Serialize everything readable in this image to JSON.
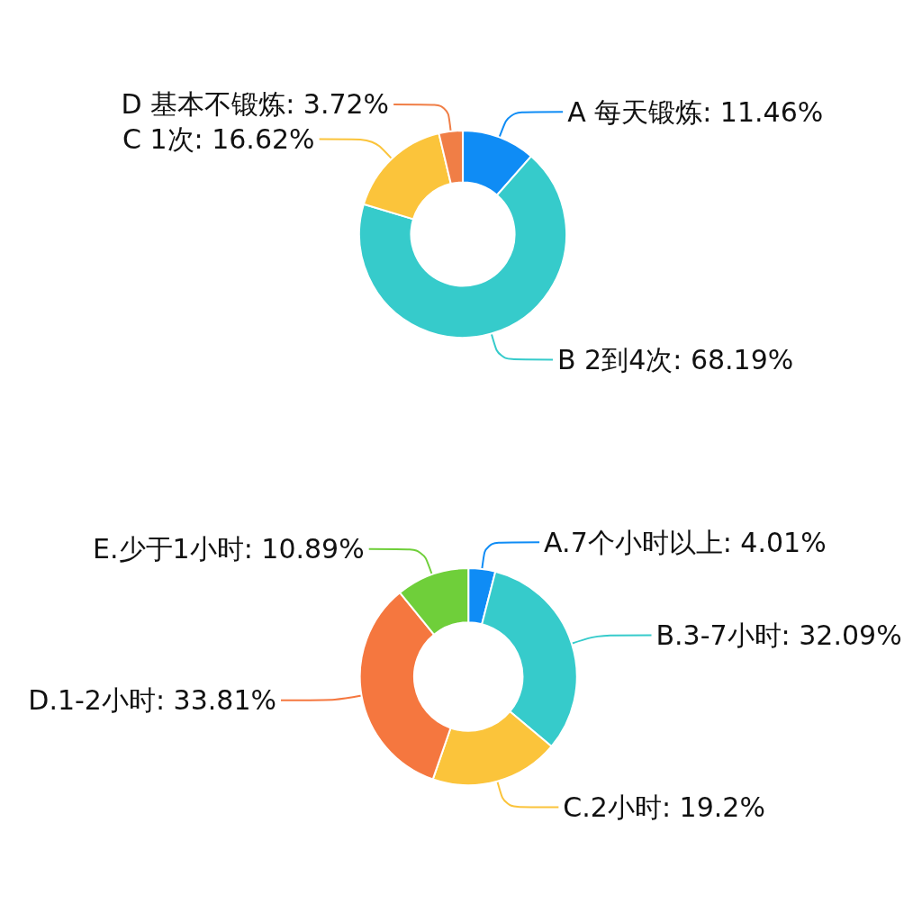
{
  "chart_data": [
    {
      "type": "donut",
      "categories": [
        "A 每天锻炼",
        "B 2到4次",
        "C 1次",
        "D 基本不锻炼"
      ],
      "values": [
        11.46,
        68.19,
        16.62,
        3.72
      ],
      "colors": [
        "#0f8cf5",
        "#36cbcb",
        "#fbc43b",
        "#f07e46"
      ],
      "value_labels": [
        "11.46%",
        "68.19%",
        "16.62%",
        "3.72%"
      ]
    },
    {
      "type": "donut",
      "categories": [
        "A.7个小时以上",
        "B.3-7小时",
        "C.2小时",
        "D.1-2小时",
        "E.少于1小时"
      ],
      "values": [
        4.01,
        32.09,
        19.2,
        33.81,
        10.89
      ],
      "colors": [
        "#0f8cf5",
        "#36cbcb",
        "#fbc43b",
        "#f5773f",
        "#6fcf3a"
      ],
      "value_labels": [
        "4.01%",
        "32.09%",
        "19.2%",
        "33.81%",
        "10.89%"
      ]
    }
  ]
}
